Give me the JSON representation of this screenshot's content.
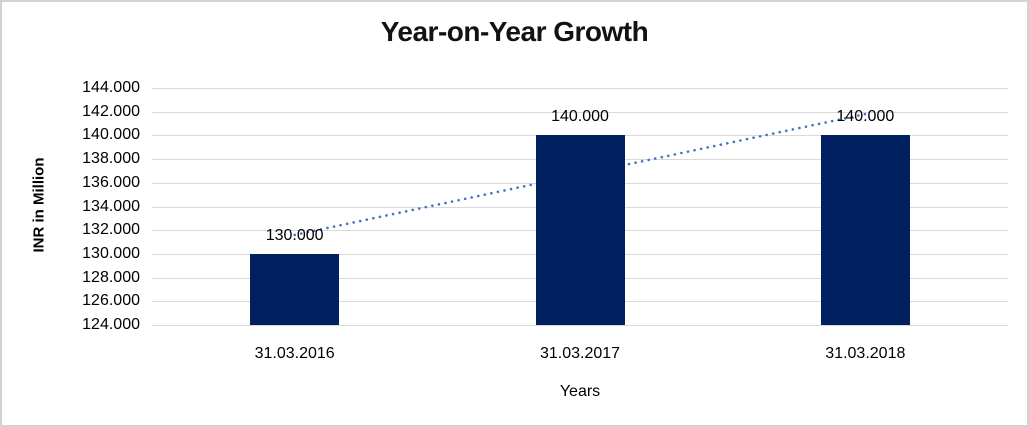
{
  "chart_data": {
    "type": "bar",
    "title": "Year-on-Year Growth",
    "xlabel": "Years",
    "ylabel": "INR in Million",
    "categories": [
      "31.03.2016",
      "31.03.2017",
      "31.03.2018"
    ],
    "values": [
      130,
      140,
      140
    ],
    "data_labels": [
      "130.000",
      "140.000",
      "140.000"
    ],
    "ylim": [
      124,
      144
    ],
    "ytick_step": 2,
    "ytick_labels": [
      "124.000",
      "126.000",
      "128.000",
      "130.000",
      "132.000",
      "134.000",
      "136.000",
      "138.000",
      "140.000",
      "142.000",
      "144.000"
    ],
    "grid": true,
    "legend": "none",
    "bar_color": "#002060",
    "gridline_color": "#D9D9D9",
    "trendline": {
      "type": "linear",
      "style": "dotted",
      "color": "#4472C4",
      "start_value": 131.6,
      "end_value": 141.8
    }
  },
  "frame": {
    "border_color": "#D2D2D2",
    "background": "#FFFFFF"
  }
}
